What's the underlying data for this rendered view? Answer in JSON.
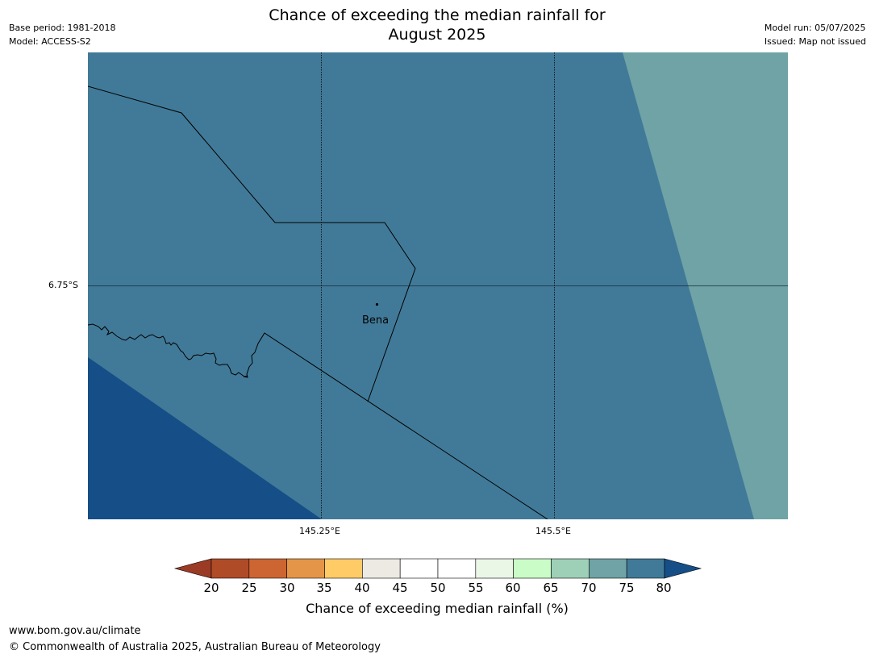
{
  "title": {
    "line1": "Chance of exceeding the median rainfall for",
    "line2": "August 2025"
  },
  "meta": {
    "base_period": "Base period: 1981-2018",
    "model": "Model: ACCESS-S2",
    "model_run": "Model run: 05/07/2025",
    "issued": "Issued: Map not issued"
  },
  "map": {
    "lat_ticks": [
      "6.75°S"
    ],
    "lon_ticks": [
      "145.25°E",
      "145.5°E"
    ],
    "place_label": "Bena",
    "colors": {
      "class_70_75": "#6fa3a6",
      "class_75_80": "#417a98",
      "class_80_plus": "#164e87",
      "boundary_line": "#000000"
    }
  },
  "colorbar": {
    "label": "Chance of exceeding median rainfall (%)",
    "ticks": [
      "20",
      "25",
      "30",
      "35",
      "40",
      "45",
      "50",
      "55",
      "60",
      "65",
      "70",
      "75",
      "80"
    ],
    "under_color": "#9c3b25",
    "over_color": "#164e87",
    "bin_colors": [
      "#b04b27",
      "#cc6531",
      "#e49547",
      "#fecb66",
      "#ede9e3",
      "#ffffff",
      "#ffffff",
      "#eaf6e6",
      "#c9fcc6",
      "#9ed0b7",
      "#6fa3a6",
      "#417a98"
    ]
  },
  "footer": {
    "url": "www.bom.gov.au/climate",
    "copyright": "© Commonwealth of Australia 2025, Australian Bureau of Meteorology"
  }
}
